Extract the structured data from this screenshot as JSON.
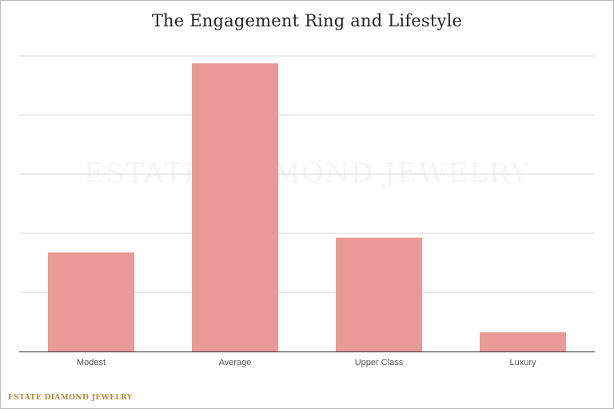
{
  "chart_data": {
    "type": "bar",
    "title": "The Engagement Ring and Lifestyle",
    "categories": [
      "Modest",
      "Average",
      "Upper Class",
      "Luxury"
    ],
    "values": [
      33.5,
      97.5,
      38.5,
      6.5
    ],
    "xlabel": "",
    "ylabel": "",
    "ylim": [
      0,
      100
    ],
    "grid": true,
    "bar_color": "#ea9999",
    "gridline_color": "#d9d9d9",
    "axis_color": "#333333"
  },
  "watermark": "ESTATE DIAMOND JEWELRY",
  "brand": "ESTATE DIAMOND JEWELRY",
  "brand_color": "#b58a3a"
}
